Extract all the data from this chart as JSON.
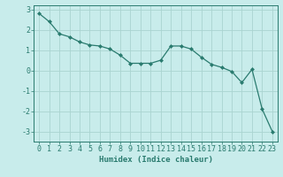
{
  "xlabel": "Humidex (Indice chaleur)",
  "ylabel": "",
  "x_values": [
    0,
    1,
    2,
    3,
    4,
    5,
    6,
    7,
    8,
    9,
    10,
    11,
    12,
    13,
    14,
    15,
    16,
    17,
    18,
    19,
    20,
    21,
    22,
    23
  ],
  "y_values": [
    2.8,
    2.4,
    1.8,
    1.65,
    1.4,
    1.25,
    1.2,
    1.05,
    0.75,
    0.35,
    0.35,
    0.35,
    0.5,
    1.2,
    1.2,
    1.05,
    0.65,
    0.3,
    0.15,
    -0.05,
    -0.6,
    0.05,
    -1.9,
    -3.0
  ],
  "line_color": "#2a7b6f",
  "marker": "D",
  "marker_size": 2.0,
  "bg_color": "#c8eceb",
  "grid_color": "#aad4d0",
  "axis_color": "#2a7b6f",
  "ylim": [
    -3.5,
    3.2
  ],
  "xlim": [
    -0.5,
    23.5
  ],
  "yticks": [
    -3,
    -2,
    -1,
    0,
    1,
    2,
    3
  ],
  "xticks": [
    0,
    1,
    2,
    3,
    4,
    5,
    6,
    7,
    8,
    9,
    10,
    11,
    12,
    13,
    14,
    15,
    16,
    17,
    18,
    19,
    20,
    21,
    22,
    23
  ],
  "label_fontsize": 6.5,
  "tick_fontsize": 6.0,
  "linewidth": 0.9
}
